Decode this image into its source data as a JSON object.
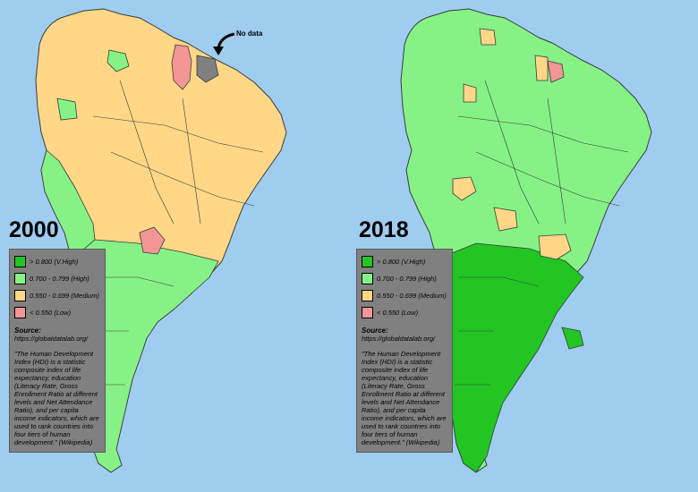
{
  "panels": [
    {
      "year": "2000",
      "legend": [
        {
          "label": "> 0.800 (V.High)",
          "color": "#22c522"
        },
        {
          "label": "0.700 - 0.799 (High)",
          "color": "#86f286"
        },
        {
          "label": "0.550 - 0.699 (Medium)",
          "color": "#ffd787"
        },
        {
          "label": "< 0.550 (Low)",
          "color": "#f59696"
        }
      ]
    },
    {
      "year": "2018",
      "legend": [
        {
          "label": "> 0.800 (V.High)",
          "color": "#22c522"
        },
        {
          "label": "0.700 - 0.799 (High)",
          "color": "#86f286"
        },
        {
          "label": "0.550 - 0.699 (Medium)",
          "color": "#ffd787"
        },
        {
          "label": "< 0.550 (Low)",
          "color": "#f59696"
        }
      ]
    }
  ],
  "source": {
    "title": "Source:",
    "url": "https://globaldatalab.org/",
    "quote": "\"The Human Development Index (HDI) is a statistic composite index of life expectancy, education (Literacy Rate, Gross Enrollment Ratio at different levels and Net Attendance Ratio), and per capita income indicators, which are used to rank countries into four tiers of human development.\" (Wikipedia)"
  },
  "annotation": {
    "no_data": "No data",
    "no_data_color": "#808080"
  },
  "colors": {
    "ocean": "#9fcdf0",
    "v_high": "#22c522",
    "high": "#86f286",
    "medium": "#ffd787",
    "low": "#f59696",
    "border": "#3a3a3a"
  }
}
